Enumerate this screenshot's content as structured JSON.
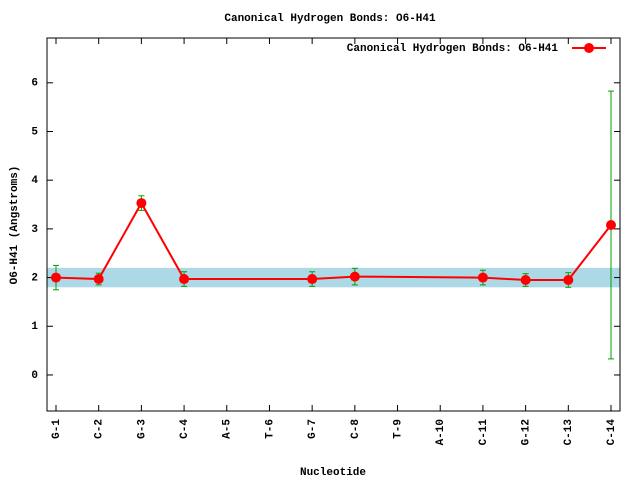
{
  "chart_data": {
    "type": "line",
    "title": "Canonical Hydrogen Bonds: O6-H41",
    "xlabel": "Nucleotide",
    "ylabel": "O6-H41 (Angstroms)",
    "categories": [
      "G-1",
      "C-2",
      "G-3",
      "C-4",
      "A-5",
      "T-6",
      "G-7",
      "C-8",
      "T-9",
      "A-10",
      "C-11",
      "G-12",
      "C-13",
      "C-14"
    ],
    "series": [
      {
        "name": "Canonical Hydrogen Bonds: O6-H41",
        "color": "#ff0000",
        "error_color": "#00a000",
        "values": [
          2.0,
          1.97,
          3.53,
          1.97,
          null,
          null,
          1.97,
          2.02,
          null,
          null,
          2.0,
          1.95,
          1.95,
          3.08
        ],
        "errors": [
          0.25,
          0.12,
          0.15,
          0.15,
          null,
          null,
          0.15,
          0.17,
          null,
          null,
          0.15,
          0.13,
          0.15,
          2.75
        ]
      }
    ],
    "band": [
      1.8,
      2.2
    ],
    "band_color": "#add8e6",
    "ylim": [
      -0.74,
      6.92
    ],
    "yticks": [
      0,
      1,
      2,
      3,
      4,
      5,
      6
    ],
    "legend": "top-right"
  }
}
